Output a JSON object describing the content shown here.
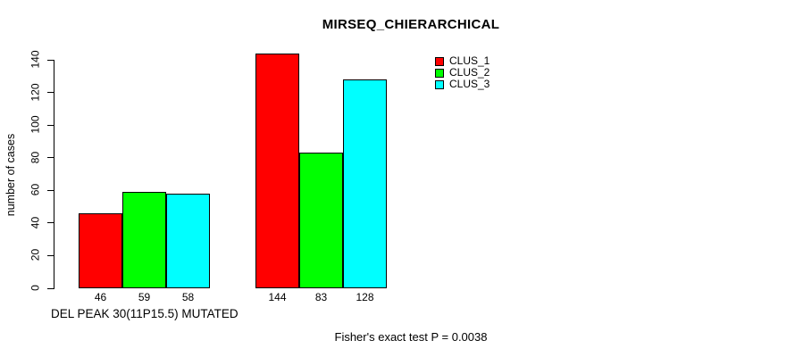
{
  "title": "MIRSEQ_CHIERARCHICAL",
  "footer": "Fisher's exact test P = 0.0038",
  "colors": {
    "background": "#ffffff",
    "text": "#000000",
    "bar_border": "#000000",
    "clus_1": "#ff0000",
    "clus_2": "#00ff00",
    "clus_3": "#00ffff"
  },
  "chart_data": {
    "type": "bar",
    "title": "MIRSEQ_CHIERARCHICAL",
    "xlabel": "DEL PEAK 30(11P15.5) MUTATED",
    "ylabel": "number of cases",
    "ylim": [
      0,
      140
    ],
    "yticks": [
      0,
      20,
      40,
      60,
      80,
      100,
      120,
      140
    ],
    "grid": false,
    "legend_position": "top-right",
    "categories": [
      "group-1",
      "group-2"
    ],
    "series": [
      {
        "name": "CLUS_1",
        "color": "#ff0000",
        "values": [
          46,
          144
        ]
      },
      {
        "name": "CLUS_2",
        "color": "#00ff00",
        "values": [
          59,
          83
        ]
      },
      {
        "name": "CLUS_3",
        "color": "#00ffff",
        "values": [
          58,
          128
        ]
      }
    ],
    "bar_value_labels": [
      [
        46,
        59,
        58
      ],
      [
        144,
        83,
        128
      ]
    ],
    "annotation": "Fisher's exact test P = 0.0038"
  }
}
